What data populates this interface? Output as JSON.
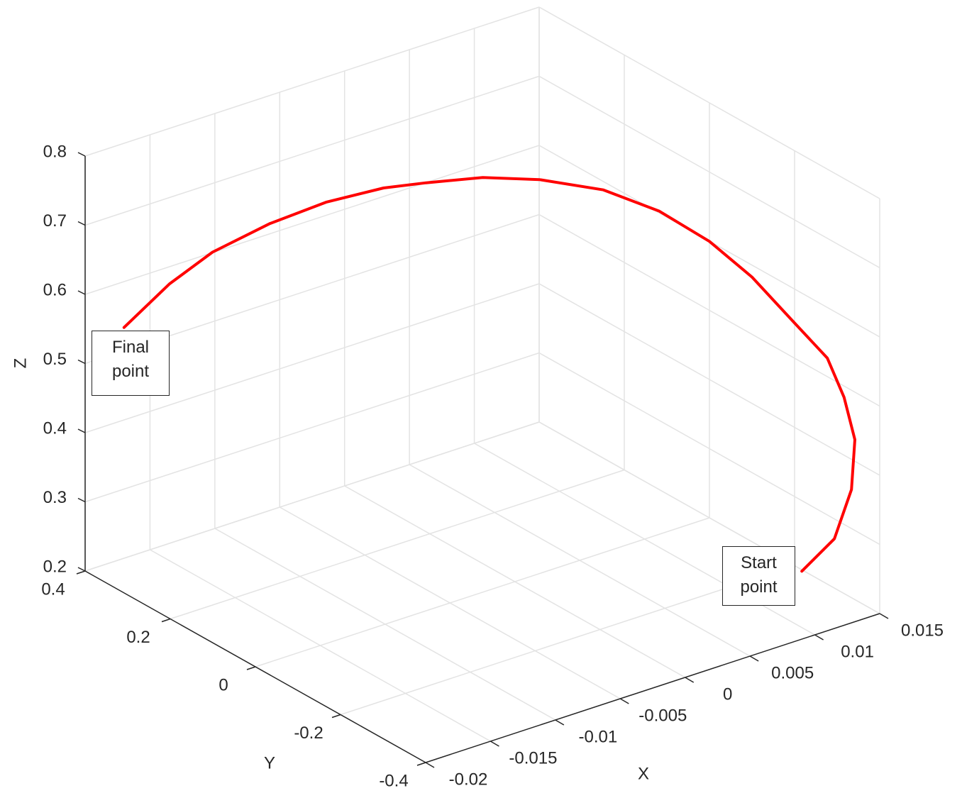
{
  "chart_data": {
    "type": "line3d",
    "xlabel": "X",
    "ylabel": "Y",
    "zlabel": "Z",
    "xlim": [
      -0.02,
      0.015
    ],
    "ylim": [
      -0.4,
      0.4
    ],
    "zlim": [
      0.2,
      0.8
    ],
    "xticks": [
      -0.02,
      -0.015,
      -0.01,
      -0.005,
      0,
      0.005,
      0.01,
      0.015
    ],
    "yticks": [
      -0.4,
      -0.2,
      0,
      0.2,
      0.4
    ],
    "zticks": [
      0.2,
      0.3,
      0.4,
      0.5,
      0.6,
      0.7,
      0.8
    ],
    "grid": true,
    "series": [
      {
        "color": "#ff0000",
        "x": [
          0.0129,
          0.014,
          0.0143,
          0.0143,
          0.0136,
          0.0126,
          0.0108,
          0.0087,
          0.0066,
          0.0057,
          0.0041,
          0.0017,
          -0.0007,
          -0.0032,
          -0.005,
          -0.0076,
          -0.0104,
          -0.0135,
          -0.0162,
          -0.0193
        ],
        "y": [
          -0.281,
          -0.324,
          -0.355,
          -0.363,
          -0.359,
          -0.35,
          -0.328,
          -0.292,
          -0.256,
          -0.166,
          -0.083,
          -0.006,
          0.054,
          0.111,
          0.156,
          0.212,
          0.259,
          0.299,
          0.318,
          0.33
        ],
        "z": [
          0.233,
          0.288,
          0.368,
          0.443,
          0.507,
          0.567,
          0.621,
          0.688,
          0.74,
          0.758,
          0.77,
          0.773,
          0.77,
          0.758,
          0.746,
          0.722,
          0.692,
          0.656,
          0.62,
          0.572
        ]
      }
    ],
    "annotations": [
      {
        "text": "Start point"
      },
      {
        "text": "Final point"
      }
    ]
  }
}
